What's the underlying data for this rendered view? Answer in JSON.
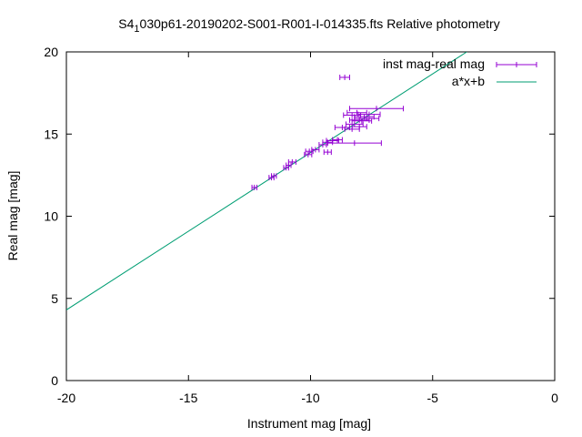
{
  "chart_data": {
    "type": "scatter",
    "title": {
      "prefix": "S4",
      "subscript": "1",
      "suffix": "030p61-20190202-S001-R001-I-014335.fts Relative photometry"
    },
    "xlabel": "Instrument mag [mag]",
    "ylabel": "Real mag [mag]",
    "xlim": [
      -20,
      0
    ],
    "ylim": [
      0,
      20
    ],
    "xticks": [
      -20,
      -15,
      -10,
      -5,
      0
    ],
    "yticks": [
      0,
      5,
      10,
      15,
      20
    ],
    "xtick_labels": [
      "-20",
      "-15",
      "-10",
      "-5",
      "0"
    ],
    "ytick_labels": [
      "0",
      "5",
      "10",
      "15",
      "20"
    ],
    "grid": false,
    "legend_position": "top-right",
    "colors": {
      "points": "#9400d3",
      "fit": "#009e73"
    },
    "series": [
      {
        "name": "inst mag-real mag",
        "kind": "errorbar",
        "points": [
          {
            "x": -12.3,
            "y": 11.75,
            "xerr": 0.1
          },
          {
            "x": -11.6,
            "y": 12.35,
            "xerr": 0.1
          },
          {
            "x": -11.5,
            "y": 12.45,
            "xerr": 0.1
          },
          {
            "x": -11.0,
            "y": 12.95,
            "xerr": 0.1
          },
          {
            "x": -10.9,
            "y": 13.1,
            "xerr": 0.1
          },
          {
            "x": -10.75,
            "y": 13.3,
            "xerr": 0.15
          },
          {
            "x": -10.1,
            "y": 13.75,
            "xerr": 0.15
          },
          {
            "x": -10.05,
            "y": 13.95,
            "xerr": 0.15
          },
          {
            "x": -9.8,
            "y": 14.05,
            "xerr": 0.15
          },
          {
            "x": -9.5,
            "y": 14.35,
            "xerr": 0.15
          },
          {
            "x": -9.3,
            "y": 14.5,
            "xerr": 0.2
          },
          {
            "x": -9.1,
            "y": 14.6,
            "xerr": 0.25
          },
          {
            "x": -9.3,
            "y": 13.9,
            "xerr": 0.15
          },
          {
            "x": -8.9,
            "y": 14.65,
            "xerr": 0.2
          },
          {
            "x": -8.7,
            "y": 15.4,
            "xerr": 0.3
          },
          {
            "x": -8.3,
            "y": 15.3,
            "xerr": 0.3
          },
          {
            "x": -8.2,
            "y": 15.6,
            "xerr": 0.35
          },
          {
            "x": -8.0,
            "y": 15.85,
            "xerr": 0.4
          },
          {
            "x": -7.8,
            "y": 16.05,
            "xerr": 0.4
          },
          {
            "x": -7.6,
            "y": 16.2,
            "xerr": 0.45
          },
          {
            "x": -7.9,
            "y": 15.8,
            "xerr": 0.4
          },
          {
            "x": -8.3,
            "y": 16.15,
            "xerr": 0.35
          },
          {
            "x": -8.0,
            "y": 15.45,
            "xerr": 0.3
          },
          {
            "x": -7.3,
            "y": 16.55,
            "xerr": 1.1
          },
          {
            "x": -8.1,
            "y": 16.3,
            "xerr": 0.4
          },
          {
            "x": -8.6,
            "y": 18.45,
            "xerr": 0.2
          },
          {
            "x": -8.2,
            "y": 14.45,
            "xerr": 1.1
          },
          {
            "x": -7.7,
            "y": 15.95,
            "xerr": 0.5
          }
        ]
      },
      {
        "name": "a*x+b",
        "kind": "line",
        "points": [
          {
            "x": -20,
            "y": 4.3
          },
          {
            "x": -3.6,
            "y": 20
          }
        ]
      }
    ]
  }
}
